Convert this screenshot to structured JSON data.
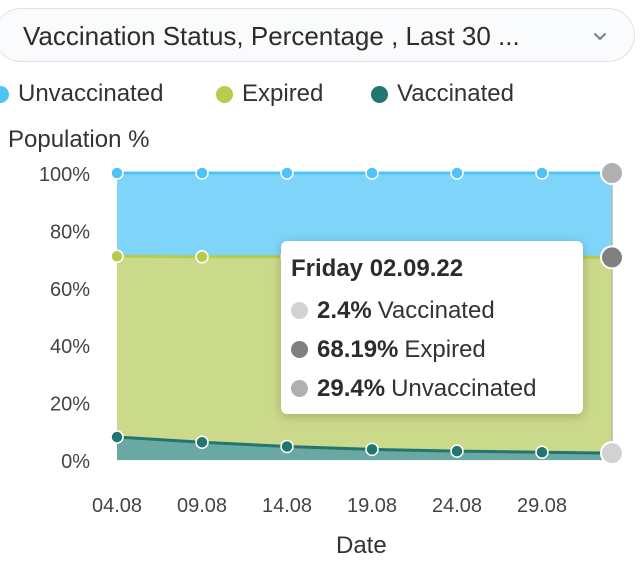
{
  "header": {
    "dropdown_text": "Vaccination Status, Percentage , Last 30 ..."
  },
  "legend": [
    {
      "label": "Unvaccinated",
      "color": "#4fc3f7"
    },
    {
      "label": "Expired",
      "color": "#b5cc4e"
    },
    {
      "label": "Vaccinated",
      "color": "#23756f"
    }
  ],
  "tooltip": {
    "title": "Friday 02.09.22",
    "rows": [
      {
        "value": "2.4%",
        "label": "Vaccinated",
        "dot_color": "#d2d2d2"
      },
      {
        "value": "68.19%",
        "label": "Expired",
        "dot_color": "#808080"
      },
      {
        "value": "29.4%",
        "label": "Unvaccinated",
        "dot_color": "#b0b0b0"
      }
    ]
  },
  "chart_data": {
    "type": "area",
    "stacked": true,
    "ylabel": "Population %",
    "xlabel": "Date",
    "ylim": [
      0,
      100
    ],
    "y_ticks": [
      "0%",
      "20%",
      "40%",
      "60%",
      "80%",
      "100%"
    ],
    "x_ticks": [
      "04.08",
      "09.08",
      "14.08",
      "19.08",
      "24.08",
      "29.08"
    ],
    "x": [
      "04.08",
      "09.08",
      "14.08",
      "19.08",
      "24.08",
      "29.08",
      "02.09"
    ],
    "series": [
      {
        "name": "Vaccinated",
        "color": "#23756f",
        "fill": "#6aa8a4",
        "values": [
          8,
          6.2,
          4.7,
          3.7,
          3.1,
          2.7,
          2.4
        ]
      },
      {
        "name": "Expired",
        "color": "#b5cc4e",
        "fill": "#cbd98a",
        "values": [
          63,
          64.6,
          66.1,
          67.1,
          67.7,
          68.0,
          68.19
        ]
      },
      {
        "name": "Unvaccinated",
        "color": "#4fc3f7",
        "fill": "#7ed5f9",
        "values": [
          29,
          29.2,
          29.2,
          29.2,
          29.2,
          29.3,
          29.4
        ]
      }
    ],
    "grid": true,
    "legend_position": "top-left",
    "highlighted_index": 6
  }
}
